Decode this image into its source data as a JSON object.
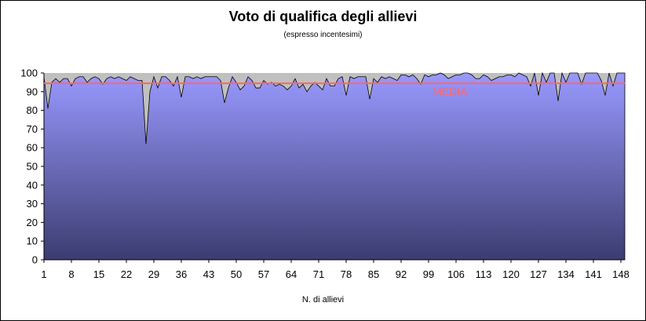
{
  "chart_data": {
    "type": "area",
    "title": "Voto di qualifica degli allievi",
    "subtitle": "(espresso incentesimi)",
    "xlabel": "N. di allievi",
    "ylabel": "",
    "ylim": [
      0,
      100
    ],
    "yticks": [
      0,
      10,
      20,
      30,
      40,
      50,
      60,
      70,
      80,
      90,
      100
    ],
    "xticks": [
      1,
      8,
      15,
      22,
      29,
      36,
      43,
      50,
      57,
      64,
      71,
      78,
      85,
      92,
      99,
      106,
      113,
      120,
      127,
      134,
      141,
      148
    ],
    "x_range": [
      1,
      149
    ],
    "grid": false,
    "legend": "none",
    "colors": {
      "plot_background": "#c0c0c0",
      "area_top": "#9999ff",
      "area_bottom": "#3c3c70",
      "mean_line": "#ff6666",
      "outline": "#000000"
    },
    "mean": {
      "label": "MEDIA",
      "value": 94.5
    },
    "series": [
      {
        "values": [
          98,
          81,
          95,
          97,
          95,
          97,
          97,
          93,
          97,
          98,
          98,
          95,
          97,
          98,
          97,
          94,
          97,
          98,
          97,
          98,
          97,
          96,
          98,
          97,
          96,
          96,
          62,
          90,
          98,
          92,
          98,
          98,
          96,
          93,
          98,
          87,
          98,
          98,
          97,
          98,
          97,
          98,
          98,
          98,
          98,
          96,
          84,
          92,
          98,
          95,
          91,
          93,
          98,
          96,
          92,
          92,
          96,
          94,
          95,
          93,
          94,
          93,
          91,
          93,
          97,
          92,
          94,
          90,
          93,
          95,
          93,
          91,
          97,
          93,
          93,
          97,
          98,
          88,
          98,
          97,
          98,
          98,
          98,
          86,
          97,
          95,
          98,
          97,
          98,
          97,
          96,
          99,
          99,
          98,
          99,
          97,
          94,
          99,
          98,
          99,
          99,
          100,
          99,
          97,
          98,
          99,
          99,
          100,
          100,
          99,
          97,
          97,
          99,
          98,
          96,
          97,
          98,
          98,
          99,
          99,
          98,
          100,
          99,
          98,
          93,
          100,
          88,
          100,
          95,
          100,
          100,
          85,
          100,
          95,
          100,
          100,
          100,
          94,
          100,
          100,
          100,
          100,
          96,
          88,
          100,
          93,
          100,
          100,
          100
        ]
      }
    ]
  }
}
